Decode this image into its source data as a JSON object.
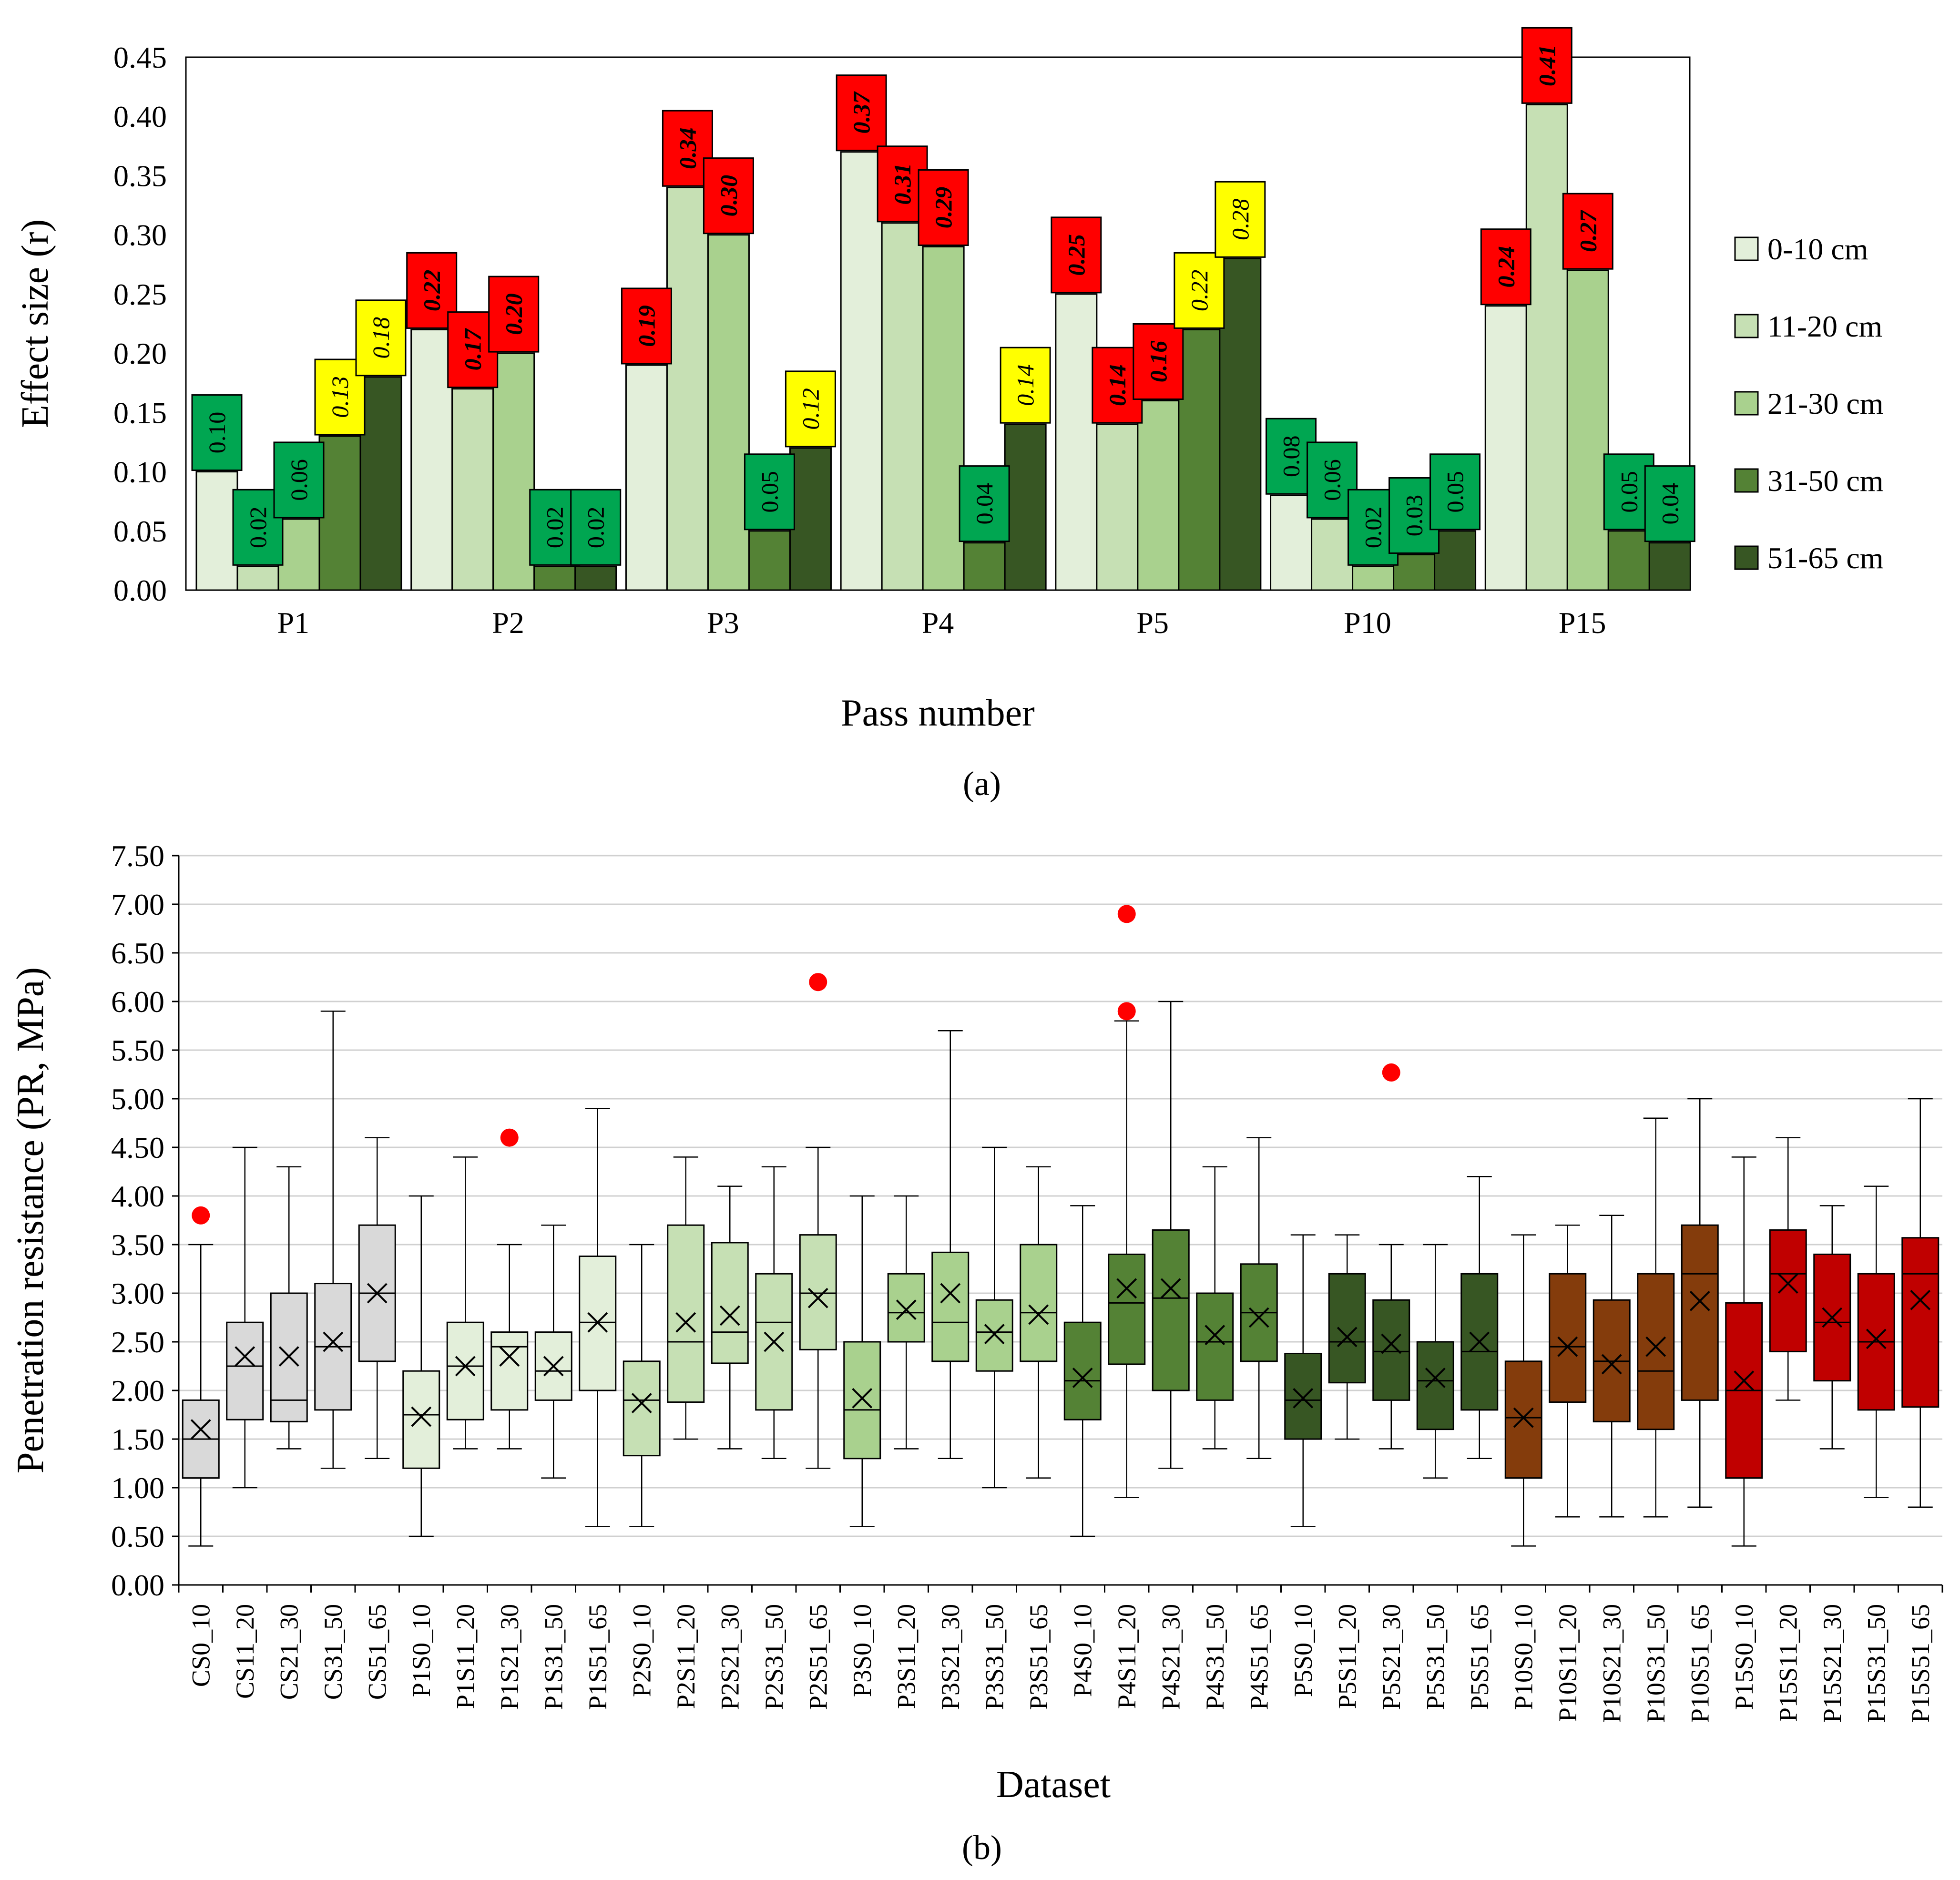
{
  "chart_data": [
    {
      "panel": "a",
      "panel_label": "(a)",
      "type": "bar",
      "ylabel": "Effect size (r)",
      "xlabel": "Pass number",
      "ylim": [
        0,
        0.45
      ],
      "yticks": [
        "0.00",
        "0.05",
        "0.10",
        "0.15",
        "0.20",
        "0.25",
        "0.30",
        "0.35",
        "0.40",
        "0.45"
      ],
      "categories": [
        "P1",
        "P2",
        "P3",
        "P4",
        "P5",
        "P10",
        "P15"
      ],
      "label_colors": {
        "green": "#00a651",
        "yellow": "#ffff00",
        "red": "#ff0000"
      },
      "series": [
        {
          "name": "0-10 cm",
          "color": "#e3efda",
          "values": [
            0.1,
            0.22,
            0.19,
            0.37,
            0.25,
            0.08,
            0.24
          ],
          "labels": [
            "0.10",
            "0.22",
            "0.19",
            "0.37",
            "0.25",
            "0.08",
            "0.24"
          ],
          "label_class": [
            "green",
            "red",
            "red",
            "red",
            "red",
            "green",
            "red"
          ]
        },
        {
          "name": "11-20 cm",
          "color": "#c6e0b4",
          "values": [
            0.02,
            0.17,
            0.34,
            0.31,
            0.14,
            0.06,
            0.41
          ],
          "labels": [
            "0.02",
            "0.17",
            "0.34",
            "0.31",
            "0.14",
            "0.06",
            "0.41"
          ],
          "label_class": [
            "green",
            "red",
            "red",
            "red",
            "red",
            "green",
            "red"
          ]
        },
        {
          "name": "21-30 cm",
          "color": "#a9d18e",
          "values": [
            0.06,
            0.2,
            0.3,
            0.29,
            0.16,
            0.02,
            0.27
          ],
          "labels": [
            "0.06",
            "0.20",
            "0.30",
            "0.29",
            "0.16",
            "0.02",
            "0.27"
          ],
          "label_class": [
            "green",
            "red",
            "red",
            "red",
            "red",
            "green",
            "red"
          ]
        },
        {
          "name": "31-50 cm",
          "color": "#548235",
          "values": [
            0.13,
            0.02,
            0.05,
            0.04,
            0.22,
            0.03,
            0.05
          ],
          "labels": [
            "0.13",
            "0.02",
            "0.05",
            "0.04",
            "0.22",
            "0.03",
            "0.05"
          ],
          "label_class": [
            "yellow",
            "green",
            "green",
            "green",
            "yellow",
            "green",
            "green"
          ]
        },
        {
          "name": "51-65 cm",
          "color": "#375623",
          "values": [
            0.18,
            0.02,
            0.12,
            0.14,
            0.28,
            0.05,
            0.04
          ],
          "labels": [
            "0.18",
            "0.02",
            "0.12",
            "0.14",
            "0.28",
            "0.05",
            "0.04"
          ],
          "label_class": [
            "yellow",
            "green",
            "yellow",
            "yellow",
            "yellow",
            "green",
            "green"
          ]
        }
      ]
    },
    {
      "panel": "b",
      "panel_label": "(b)",
      "type": "box",
      "ylabel": "Penetration resistance (PR, MPa)",
      "xlabel": "Dataset",
      "ylim": [
        0,
        7.5
      ],
      "yticks": [
        "0.00",
        "0.50",
        "1.00",
        "1.50",
        "2.00",
        "2.50",
        "3.00",
        "3.50",
        "4.00",
        "4.50",
        "5.00",
        "5.50",
        "6.00",
        "6.50",
        "7.00",
        "7.50"
      ],
      "outlier_color": "#ff0000",
      "group_colors": {
        "CS": "#d9d9d9",
        "P1": "#e3efda",
        "P2": "#c6e0b4",
        "P3": "#a9d18e",
        "P4": "#548235",
        "P5": "#375623",
        "P10": "#843c0c",
        "P15": "#c00000"
      },
      "boxes": [
        {
          "label": "CS0_10",
          "group": "CS",
          "min": 0.4,
          "q1": 1.1,
          "median": 1.5,
          "q3": 1.9,
          "max": 3.5,
          "mean": 1.6,
          "outliers": [
            3.8
          ]
        },
        {
          "label": "CS11_20",
          "group": "CS",
          "min": 1.0,
          "q1": 1.7,
          "median": 2.25,
          "q3": 2.7,
          "max": 4.5,
          "mean": 2.35,
          "outliers": []
        },
        {
          "label": "CS21_30",
          "group": "CS",
          "min": 1.4,
          "q1": 1.68,
          "median": 1.9,
          "q3": 3.0,
          "max": 4.3,
          "mean": 2.35,
          "outliers": []
        },
        {
          "label": "CS31_50",
          "group": "CS",
          "min": 1.2,
          "q1": 1.8,
          "median": 2.45,
          "q3": 3.1,
          "max": 5.9,
          "mean": 2.5,
          "outliers": []
        },
        {
          "label": "CS51_65",
          "group": "CS",
          "min": 1.3,
          "q1": 2.3,
          "median": 3.0,
          "q3": 3.7,
          "max": 4.6,
          "mean": 3.0,
          "outliers": []
        },
        {
          "label": "P1S0_10",
          "group": "P1",
          "min": 0.5,
          "q1": 1.2,
          "median": 1.75,
          "q3": 2.2,
          "max": 4.0,
          "mean": 1.73,
          "outliers": []
        },
        {
          "label": "P1S11_20",
          "group": "P1",
          "min": 1.4,
          "q1": 1.7,
          "median": 2.25,
          "q3": 2.7,
          "max": 4.4,
          "mean": 2.25,
          "outliers": []
        },
        {
          "label": "P1S21_30",
          "group": "P1",
          "min": 1.4,
          "q1": 1.8,
          "median": 2.45,
          "q3": 2.6,
          "max": 3.5,
          "mean": 2.35,
          "outliers": [
            4.6
          ]
        },
        {
          "label": "P1S31_50",
          "group": "P1",
          "min": 1.1,
          "q1": 1.9,
          "median": 2.2,
          "q3": 2.6,
          "max": 3.7,
          "mean": 2.25,
          "outliers": []
        },
        {
          "label": "P1S51_65",
          "group": "P1",
          "min": 0.6,
          "q1": 2.0,
          "median": 2.7,
          "q3": 3.38,
          "max": 4.9,
          "mean": 2.7,
          "outliers": []
        },
        {
          "label": "P2S0_10",
          "group": "P2",
          "min": 0.6,
          "q1": 1.33,
          "median": 1.9,
          "q3": 2.3,
          "max": 3.5,
          "mean": 1.87,
          "outliers": []
        },
        {
          "label": "P2S11_20",
          "group": "P2",
          "min": 1.5,
          "q1": 1.88,
          "median": 2.5,
          "q3": 3.7,
          "max": 4.4,
          "mean": 2.7,
          "outliers": []
        },
        {
          "label": "P2S21_30",
          "group": "P2",
          "min": 1.4,
          "q1": 2.28,
          "median": 2.6,
          "q3": 3.52,
          "max": 4.1,
          "mean": 2.77,
          "outliers": []
        },
        {
          "label": "P2S31_50",
          "group": "P2",
          "min": 1.3,
          "q1": 1.8,
          "median": 2.7,
          "q3": 3.2,
          "max": 4.3,
          "mean": 2.5,
          "outliers": []
        },
        {
          "label": "P2S51_65",
          "group": "P2",
          "min": 1.2,
          "q1": 2.42,
          "median": 3.0,
          "q3": 3.6,
          "max": 4.5,
          "mean": 2.95,
          "outliers": [
            6.2
          ]
        },
        {
          "label": "P3S0_10",
          "group": "P3",
          "min": 0.6,
          "q1": 1.3,
          "median": 1.8,
          "q3": 2.5,
          "max": 4.0,
          "mean": 1.92,
          "outliers": []
        },
        {
          "label": "P3S11_20",
          "group": "P3",
          "min": 1.4,
          "q1": 2.5,
          "median": 2.8,
          "q3": 3.2,
          "max": 4.0,
          "mean": 2.83,
          "outliers": []
        },
        {
          "label": "P3S21_30",
          "group": "P3",
          "min": 1.3,
          "q1": 2.3,
          "median": 2.7,
          "q3": 3.42,
          "max": 5.7,
          "mean": 3.0,
          "outliers": []
        },
        {
          "label": "P3S31_50",
          "group": "P3",
          "min": 1.0,
          "q1": 2.2,
          "median": 2.6,
          "q3": 2.93,
          "max": 4.5,
          "mean": 2.58,
          "outliers": []
        },
        {
          "label": "P3S51_65",
          "group": "P3",
          "min": 1.1,
          "q1": 2.3,
          "median": 2.8,
          "q3": 3.5,
          "max": 4.3,
          "mean": 2.78,
          "outliers": []
        },
        {
          "label": "P4S0_10",
          "group": "P4",
          "min": 0.5,
          "q1": 1.7,
          "median": 2.1,
          "q3": 2.7,
          "max": 3.9,
          "mean": 2.13,
          "outliers": []
        },
        {
          "label": "P4S11_20",
          "group": "P4",
          "min": 0.9,
          "q1": 2.27,
          "median": 2.9,
          "q3": 3.4,
          "max": 5.8,
          "mean": 3.05,
          "outliers": [
            5.9,
            6.9
          ]
        },
        {
          "label": "P4S21_30",
          "group": "P4",
          "min": 1.2,
          "q1": 2.0,
          "median": 2.95,
          "q3": 3.65,
          "max": 6.0,
          "mean": 3.05,
          "outliers": []
        },
        {
          "label": "P4S31_50",
          "group": "P4",
          "min": 1.4,
          "q1": 1.9,
          "median": 2.5,
          "q3": 3.0,
          "max": 4.3,
          "mean": 2.57,
          "outliers": []
        },
        {
          "label": "P4S51_65",
          "group": "P4",
          "min": 1.3,
          "q1": 2.3,
          "median": 2.8,
          "q3": 3.3,
          "max": 4.6,
          "mean": 2.75,
          "outliers": []
        },
        {
          "label": "P5S0_10",
          "group": "P5",
          "min": 0.6,
          "q1": 1.5,
          "median": 1.9,
          "q3": 2.38,
          "max": 3.6,
          "mean": 1.92,
          "outliers": []
        },
        {
          "label": "P5S11_20",
          "group": "P5",
          "min": 1.5,
          "q1": 2.08,
          "median": 2.5,
          "q3": 3.2,
          "max": 3.6,
          "mean": 2.55,
          "outliers": []
        },
        {
          "label": "P5S21_30",
          "group": "P5",
          "min": 1.4,
          "q1": 1.9,
          "median": 2.4,
          "q3": 2.93,
          "max": 3.5,
          "mean": 2.48,
          "outliers": [
            5.27
          ]
        },
        {
          "label": "P5S31_50",
          "group": "P5",
          "min": 1.1,
          "q1": 1.6,
          "median": 2.1,
          "q3": 2.5,
          "max": 3.5,
          "mean": 2.13,
          "outliers": []
        },
        {
          "label": "P5S51_65",
          "group": "P5",
          "min": 1.3,
          "q1": 1.8,
          "median": 2.4,
          "q3": 3.2,
          "max": 4.2,
          "mean": 2.5,
          "outliers": []
        },
        {
          "label": "P10S0_10",
          "group": "P10",
          "min": 0.4,
          "q1": 1.1,
          "median": 1.72,
          "q3": 2.3,
          "max": 3.6,
          "mean": 1.72,
          "outliers": []
        },
        {
          "label": "P10S11_20",
          "group": "P10",
          "min": 0.7,
          "q1": 1.88,
          "median": 2.45,
          "q3": 3.2,
          "max": 3.7,
          "mean": 2.45,
          "outliers": []
        },
        {
          "label": "P10S21_30",
          "group": "P10",
          "min": 0.7,
          "q1": 1.68,
          "median": 2.3,
          "q3": 2.93,
          "max": 3.8,
          "mean": 2.27,
          "outliers": []
        },
        {
          "label": "P10S31_50",
          "group": "P10",
          "min": 0.7,
          "q1": 1.6,
          "median": 2.2,
          "q3": 3.2,
          "max": 4.8,
          "mean": 2.45,
          "outliers": []
        },
        {
          "label": "P10S51_65",
          "group": "P10",
          "min": 0.8,
          "q1": 1.9,
          "median": 3.2,
          "q3": 3.7,
          "max": 5.0,
          "mean": 2.92,
          "outliers": []
        },
        {
          "label": "P15S0_10",
          "group": "P15",
          "min": 0.4,
          "q1": 1.1,
          "median": 2.0,
          "q3": 2.9,
          "max": 4.4,
          "mean": 2.1,
          "outliers": []
        },
        {
          "label": "P15S11_20",
          "group": "P15",
          "min": 1.9,
          "q1": 2.4,
          "median": 3.2,
          "q3": 3.65,
          "max": 4.6,
          "mean": 3.1,
          "outliers": []
        },
        {
          "label": "P15S21_30",
          "group": "P15",
          "min": 1.4,
          "q1": 2.1,
          "median": 2.7,
          "q3": 3.4,
          "max": 3.9,
          "mean": 2.75,
          "outliers": []
        },
        {
          "label": "P15S31_50",
          "group": "P15",
          "min": 0.9,
          "q1": 1.8,
          "median": 2.5,
          "q3": 3.2,
          "max": 4.1,
          "mean": 2.53,
          "outliers": []
        },
        {
          "label": "P15S51_65",
          "group": "P15",
          "min": 0.8,
          "q1": 1.83,
          "median": 3.2,
          "q3": 3.57,
          "max": 5.0,
          "mean": 2.93,
          "outliers": []
        }
      ]
    }
  ]
}
